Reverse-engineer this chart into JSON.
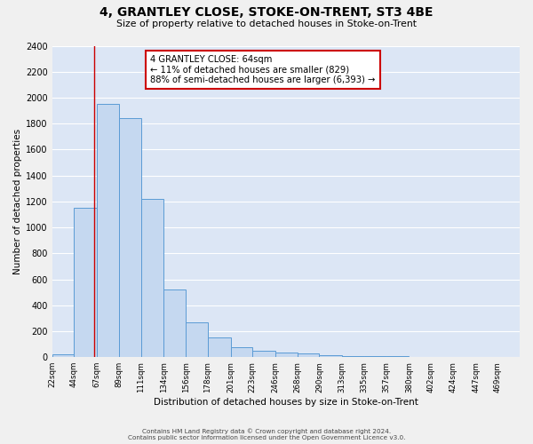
{
  "title": "4, GRANTLEY CLOSE, STOKE-ON-TRENT, ST3 4BE",
  "subtitle": "Size of property relative to detached houses in Stoke-on-Trent",
  "xlabel": "Distribution of detached houses by size in Stoke-on-Trent",
  "ylabel": "Number of detached properties",
  "bin_labels": [
    "22sqm",
    "44sqm",
    "67sqm",
    "89sqm",
    "111sqm",
    "134sqm",
    "156sqm",
    "178sqm",
    "201sqm",
    "223sqm",
    "246sqm",
    "268sqm",
    "290sqm",
    "313sqm",
    "335sqm",
    "357sqm",
    "380sqm",
    "402sqm",
    "424sqm",
    "447sqm",
    "469sqm"
  ],
  "bin_edges": [
    22,
    44,
    67,
    89,
    111,
    134,
    156,
    178,
    201,
    223,
    246,
    268,
    290,
    313,
    335,
    357,
    380,
    402,
    424,
    447,
    469
  ],
  "bar_heights": [
    25,
    1150,
    1950,
    1840,
    1220,
    520,
    265,
    150,
    80,
    50,
    35,
    30,
    15,
    10,
    5,
    5,
    3,
    2,
    2,
    1
  ],
  "bar_color": "#c5d8f0",
  "bar_edge_color": "#5b9bd5",
  "property_size": 64,
  "property_line_color": "#cc0000",
  "annotation_line1": "4 GRANTLEY CLOSE: 64sqm",
  "annotation_line2": "← 11% of detached houses are smaller (829)",
  "annotation_line3": "88% of semi-detached houses are larger (6,393) →",
  "annotation_box_color": "#ffffff",
  "annotation_box_edge": "#cc0000",
  "ylim": [
    0,
    2400
  ],
  "yticks": [
    0,
    200,
    400,
    600,
    800,
    1000,
    1200,
    1400,
    1600,
    1800,
    2000,
    2200,
    2400
  ],
  "plot_bg_color": "#dce6f5",
  "fig_bg_color": "#f0f0f0",
  "footer_line1": "Contains HM Land Registry data © Crown copyright and database right 2024.",
  "footer_line2": "Contains public sector information licensed under the Open Government Licence v3.0."
}
